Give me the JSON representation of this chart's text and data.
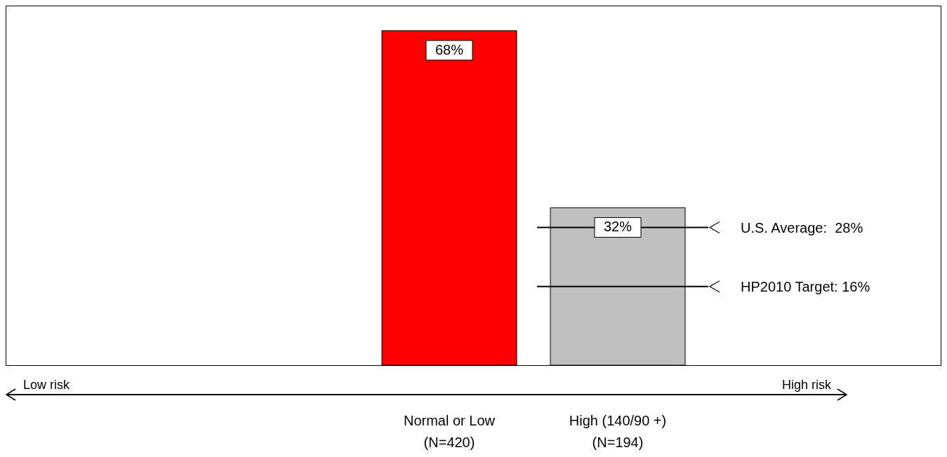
{
  "chart_data": {
    "type": "bar",
    "categories": [
      "Normal or Low (N=420)",
      "High (140/90 +) (N=194)"
    ],
    "values": [
      68,
      32
    ],
    "colors": [
      "#ff0000",
      "#c0c0c0"
    ],
    "data_labels": true,
    "value_labels": [
      "68%",
      "32%"
    ],
    "ref_lines": [
      {
        "axis": "y",
        "value": 28,
        "label": "U.S. Average:  28%",
        "color": "#000000"
      },
      {
        "axis": "y",
        "value": 16,
        "label": "HP2010 Target: 16%",
        "color": "#000000"
      }
    ],
    "annotations": [
      "Low risk",
      "High risk"
    ]
  }
}
